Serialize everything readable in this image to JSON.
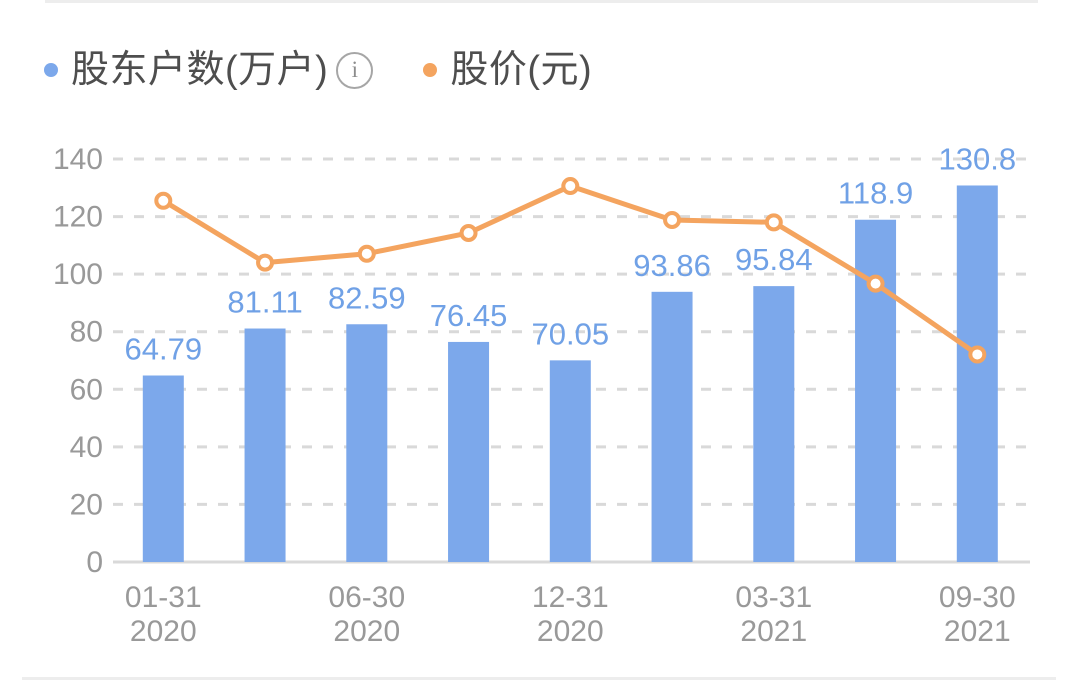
{
  "legend": {
    "items": [
      {
        "label": "股东户数(万户)",
        "color": "#7ca8eb",
        "has_info_icon": true
      },
      {
        "label": "股价(元)",
        "color": "#f4a45f",
        "has_info_icon": false
      }
    ],
    "info_icon_glyph": "i"
  },
  "chart_data": {
    "type": "bar",
    "categories": [
      "01-31 2020",
      "",
      "06-30 2020",
      "",
      "12-31 2020",
      "",
      "03-31 2021",
      "",
      "09-30 2021"
    ],
    "series": [
      {
        "name": "股东户数(万户)",
        "type": "bar",
        "color": "#7ca8eb",
        "values": [
          64.79,
          81.11,
          82.59,
          76.45,
          70.05,
          93.86,
          95.84,
          118.9,
          130.8
        ],
        "value_labels": [
          "64.79",
          "81.11",
          "82.59",
          "76.45",
          "70.05",
          "93.86",
          "95.84",
          "118.9",
          "130.8"
        ],
        "value_label_color": "#70a1e6"
      },
      {
        "name": "股价(元)",
        "type": "line",
        "color": "#f4a45f",
        "marker": "hollow-circle",
        "values": [
          125.5,
          104.0,
          107.1,
          114.3,
          130.6,
          118.8,
          118.0,
          96.7,
          72.1
        ]
      }
    ],
    "ylim": [
      0,
      140
    ],
    "y_ticks": [
      0,
      20,
      40,
      60,
      80,
      100,
      120,
      140
    ],
    "grid": "horizontal-dashed",
    "grid_color": "#d9d9d9",
    "axis_label_color": "#999999",
    "legend_position": "top-left"
  }
}
